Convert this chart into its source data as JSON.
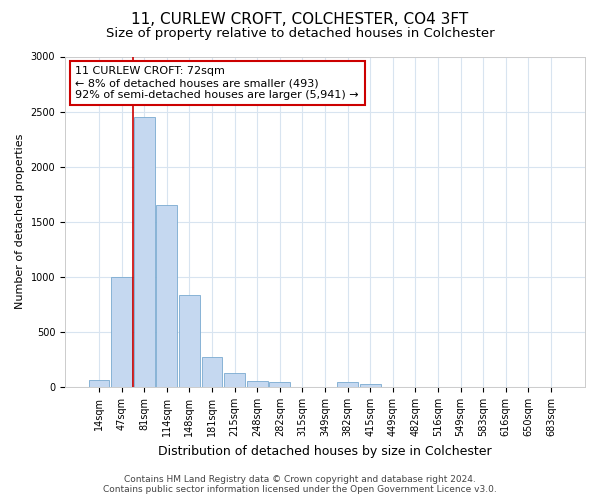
{
  "title": "11, CURLEW CROFT, COLCHESTER, CO4 3FT",
  "subtitle": "Size of property relative to detached houses in Colchester",
  "xlabel": "Distribution of detached houses by size in Colchester",
  "ylabel": "Number of detached properties",
  "categories": [
    "14sqm",
    "47sqm",
    "81sqm",
    "114sqm",
    "148sqm",
    "181sqm",
    "215sqm",
    "248sqm",
    "282sqm",
    "315sqm",
    "349sqm",
    "382sqm",
    "415sqm",
    "449sqm",
    "482sqm",
    "516sqm",
    "549sqm",
    "583sqm",
    "616sqm",
    "650sqm",
    "683sqm"
  ],
  "values": [
    60,
    1000,
    2450,
    1650,
    840,
    275,
    130,
    55,
    50,
    0,
    0,
    50,
    30,
    0,
    0,
    0,
    0,
    0,
    0,
    0,
    0
  ],
  "bar_color": "#c5d8f0",
  "bar_edge_color": "#7aaad0",
  "grid_color": "#d8e4f0",
  "background_color": "#ffffff",
  "axes_background_color": "#ffffff",
  "red_line_x": 1.5,
  "annotation_text": "11 CURLEW CROFT: 72sqm\n← 8% of detached houses are smaller (493)\n92% of semi-detached houses are larger (5,941) →",
  "annotation_box_color": "#ffffff",
  "annotation_border_color": "#cc0000",
  "ylim": [
    0,
    3000
  ],
  "yticks": [
    0,
    500,
    1000,
    1500,
    2000,
    2500,
    3000
  ],
  "footer_line1": "Contains HM Land Registry data © Crown copyright and database right 2024.",
  "footer_line2": "Contains public sector information licensed under the Open Government Licence v3.0.",
  "title_fontsize": 11,
  "subtitle_fontsize": 9.5,
  "xlabel_fontsize": 9,
  "ylabel_fontsize": 8,
  "tick_fontsize": 7,
  "annotation_fontsize": 8,
  "footer_fontsize": 6.5
}
